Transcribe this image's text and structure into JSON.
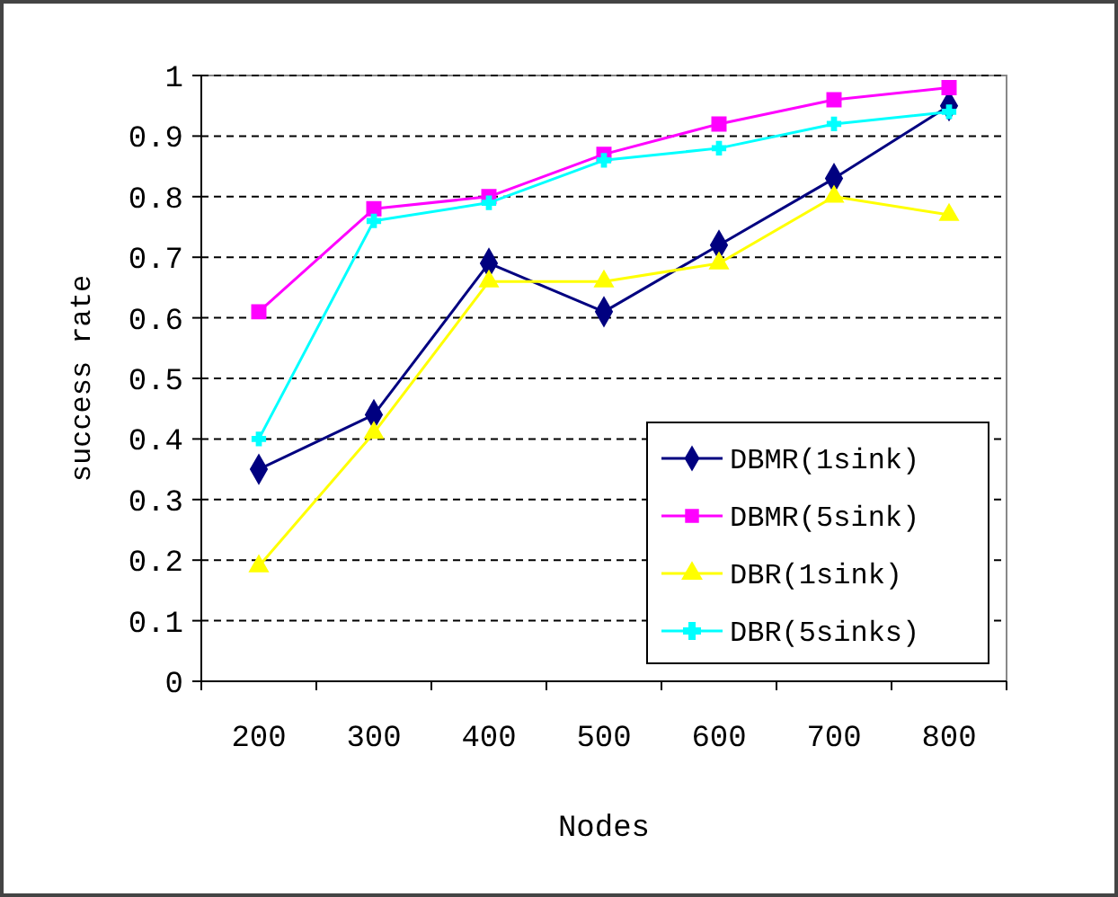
{
  "chart_data": {
    "type": "line",
    "xlabel": "Nodes",
    "ylabel": "success rate",
    "categories": [
      "200",
      "300",
      "400",
      "500",
      "600",
      "700",
      "800"
    ],
    "series": [
      {
        "name": "DBMR(1sink)",
        "color": "#000080",
        "marker": "diamond",
        "values": [
          0.35,
          0.44,
          0.69,
          0.61,
          0.72,
          0.83,
          0.95
        ]
      },
      {
        "name": "DBMR(5sink)",
        "color": "#ff00ff",
        "marker": "square",
        "values": [
          0.61,
          0.78,
          0.8,
          0.87,
          0.92,
          0.96,
          0.98
        ]
      },
      {
        "name": "DBR(1sink)",
        "color": "#ffff00",
        "marker": "triangle",
        "values": [
          0.19,
          0.41,
          0.66,
          0.66,
          0.69,
          0.8,
          0.77
        ]
      },
      {
        "name": "DBR(5sinks)",
        "color": "#00ffff",
        "marker": "cross",
        "values": [
          0.4,
          0.76,
          0.79,
          0.86,
          0.88,
          0.92,
          0.94
        ]
      }
    ],
    "ylim": [
      0,
      1
    ],
    "yticks": [
      0,
      0.1,
      0.2,
      0.3,
      0.4,
      0.5,
      0.6,
      0.7,
      0.8,
      0.9,
      1
    ],
    "grid": "y",
    "legend": "bottom right"
  }
}
